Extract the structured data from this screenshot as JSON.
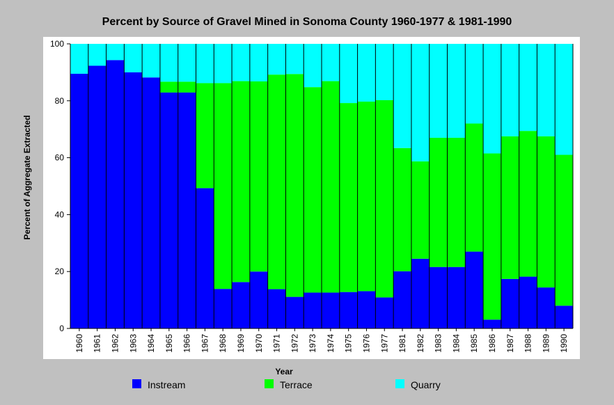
{
  "chart_data": {
    "type": "bar",
    "stacked": true,
    "title": "Percent by Source of Gravel Mined in Sonoma County 1960-1977 & 1981-1990",
    "xlabel": "Year",
    "ylabel": "Percent of Aggregate Extracted",
    "ylim": [
      0,
      100
    ],
    "yticks": [
      0,
      20,
      40,
      60,
      80,
      100
    ],
    "grid": false,
    "legend_position": "bottom",
    "categories": [
      "1960",
      "1961",
      "1962",
      "1963",
      "1964",
      "1965",
      "1966",
      "1967",
      "1968",
      "1969",
      "1970",
      "1971",
      "1972",
      "1973",
      "1974",
      "1975",
      "1976",
      "1977",
      "1981",
      "1982",
      "1983",
      "1984",
      "1985",
      "1986",
      "1987",
      "1988",
      "1989",
      "1990"
    ],
    "series": [
      {
        "name": "Instream",
        "color": "#0000ff",
        "values": [
          89.5,
          92.3,
          94.3,
          90.0,
          88.2,
          82.9,
          82.9,
          49.3,
          13.9,
          16.3,
          20.0,
          13.8,
          11.1,
          12.6,
          12.6,
          12.8,
          13.1,
          10.9,
          20.1,
          24.5,
          21.6,
          21.6,
          27.0,
          3.1,
          17.4,
          18.2,
          14.4,
          8.0
        ]
      },
      {
        "name": "Terrace",
        "color": "#00ff00",
        "values": [
          0,
          0,
          0,
          0,
          0,
          3.8,
          3.8,
          36.9,
          72.3,
          70.6,
          66.8,
          75.4,
          78.3,
          72.2,
          74.3,
          66.4,
          66.6,
          69.3,
          43.3,
          34.2,
          45.4,
          45.4,
          45.0,
          58.4,
          50.1,
          51.2,
          53.1,
          53.0
        ]
      },
      {
        "name": "Quarry",
        "color": "#00ffff",
        "values": [
          10.5,
          7.7,
          5.7,
          10.0,
          11.8,
          13.3,
          13.3,
          13.8,
          13.8,
          13.1,
          13.2,
          10.8,
          10.6,
          15.2,
          13.1,
          20.8,
          20.3,
          19.8,
          36.6,
          41.3,
          33.0,
          33.0,
          28.0,
          38.5,
          32.5,
          30.6,
          32.5,
          39.0
        ]
      }
    ]
  }
}
